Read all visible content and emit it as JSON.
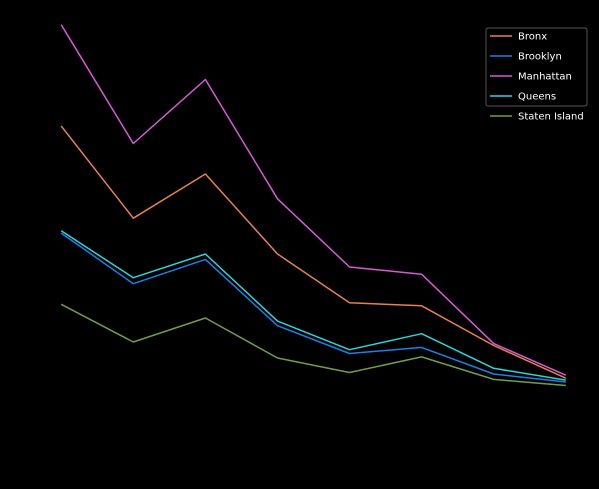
{
  "chart_data": {
    "type": "line",
    "x": [
      0,
      1,
      2,
      3,
      4,
      5,
      6,
      7
    ],
    "ylim": [
      0,
      100
    ],
    "xlim": [
      -0.35,
      7.35
    ],
    "grid": false,
    "legend_position": "top-right",
    "series": [
      {
        "name": "Bronx",
        "color": "#e8804f",
        "values": [
          72.7,
          48.5,
          60.1,
          39.1,
          26.3,
          25.5,
          15.1,
          6.5
        ]
      },
      {
        "name": "Brooklyn",
        "color": "#1f7fe6",
        "values": [
          44.6,
          31.3,
          37.7,
          20.3,
          13.0,
          14.6,
          7.6,
          5.5
        ]
      },
      {
        "name": "Manhattan",
        "color": "#d65ad6",
        "values": [
          99.3,
          68.1,
          84.9,
          53.6,
          35.7,
          33.8,
          15.6,
          7.3
        ]
      },
      {
        "name": "Queens",
        "color": "#2ad6d6",
        "values": [
          45.2,
          32.9,
          39.1,
          21.5,
          14.0,
          18.2,
          9.1,
          6.0
        ]
      },
      {
        "name": "Staten Island",
        "color": "#6f9e4c",
        "values": [
          25.9,
          16.0,
          22.3,
          11.8,
          8.0,
          12.1,
          6.2,
          4.6
        ]
      }
    ]
  }
}
